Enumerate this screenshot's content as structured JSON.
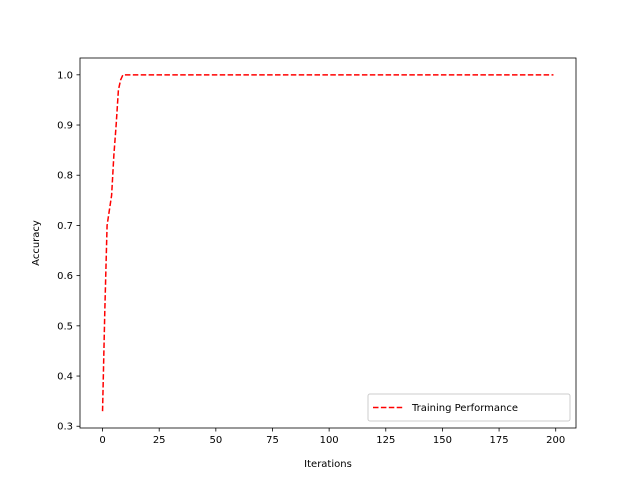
{
  "chart_data": {
    "type": "line",
    "title": "",
    "xlabel": "Iterations",
    "ylabel": "Accuracy",
    "xlim": [
      -9.95,
      208.95
    ],
    "ylim": [
      0.2965,
      1.0335
    ],
    "xticks": [
      0,
      25,
      50,
      75,
      100,
      125,
      150,
      175,
      200
    ],
    "yticks": [
      0.3,
      0.4,
      0.5,
      0.6,
      0.7,
      0.8,
      0.9,
      1.0
    ],
    "xtick_labels": [
      "0",
      "25",
      "50",
      "75",
      "100",
      "125",
      "150",
      "175",
      "200"
    ],
    "ytick_labels": [
      "0.3",
      "0.4",
      "0.5",
      "0.6",
      "0.7",
      "0.8",
      "0.9",
      "1.0"
    ],
    "grid": false,
    "legend_position": "lower-right",
    "series": [
      {
        "name": "Training Performance",
        "color": "#ff0000",
        "line_style": "dashed",
        "x": [
          0,
          1,
          2,
          3,
          4,
          5,
          6,
          7,
          8,
          9,
          10,
          11,
          12,
          199
        ],
        "y": [
          0.33,
          0.53,
          0.7,
          0.73,
          0.76,
          0.84,
          0.9,
          0.97,
          0.99,
          1.0,
          1.0,
          1.0,
          1.0,
          1.0
        ]
      }
    ]
  }
}
